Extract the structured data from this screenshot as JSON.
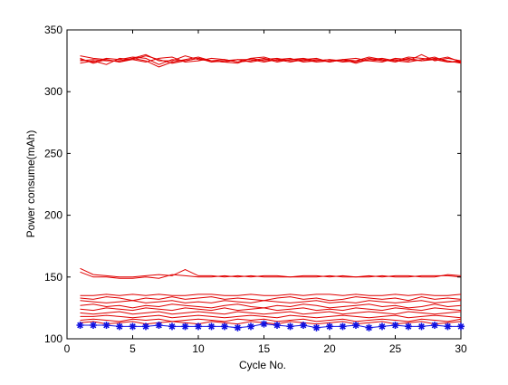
{
  "chart_data": {
    "type": "line",
    "title": "",
    "xlabel": "Cycle No.",
    "ylabel": "Power consume(mAh)",
    "xlim": [
      0,
      30
    ],
    "ylim": [
      100,
      350
    ],
    "xticks": [
      0,
      5,
      10,
      15,
      20,
      25,
      30
    ],
    "yticks": [
      100,
      150,
      200,
      250,
      300,
      350
    ],
    "grid": false,
    "x": [
      1,
      2,
      3,
      4,
      5,
      6,
      7,
      8,
      9,
      10,
      11,
      12,
      13,
      14,
      15,
      16,
      17,
      18,
      19,
      20,
      21,
      22,
      23,
      24,
      25,
      26,
      27,
      28,
      29,
      30
    ],
    "series": [
      {
        "color": "#e00000",
        "values": [
          329,
          327,
          326,
          324,
          327,
          330,
          325,
          325,
          329,
          326,
          325,
          324,
          323,
          327,
          328,
          325,
          326,
          327,
          325,
          326,
          324,
          325,
          328,
          326,
          325,
          328,
          327,
          326,
          328,
          324
        ]
      },
      {
        "color": "#e00000",
        "values": [
          326,
          324,
          327,
          326,
          328,
          327,
          322,
          326,
          325,
          327,
          324,
          325,
          326,
          324,
          326,
          327,
          325,
          325,
          326,
          324,
          326,
          327,
          325,
          324,
          327,
          326,
          325,
          327,
          325,
          323
        ]
      },
      {
        "color": "#e00000",
        "values": [
          323,
          325,
          322,
          327,
          326,
          324,
          327,
          328,
          324,
          325,
          327,
          326,
          324,
          325,
          327,
          324,
          326,
          326,
          324,
          325,
          326,
          323,
          326,
          327,
          325,
          324,
          326,
          328,
          324,
          325
        ]
      },
      {
        "color": "#e00000",
        "values": [
          325,
          326,
          325,
          325,
          327,
          325,
          320,
          324,
          326,
          328,
          325,
          324,
          326,
          326,
          324,
          326,
          327,
          324,
          325,
          326,
          325,
          324,
          327,
          325,
          326,
          325,
          330,
          325,
          327,
          325
        ]
      },
      {
        "color": "#e00000",
        "values": [
          327,
          323,
          326,
          324,
          326,
          329,
          326,
          323,
          325,
          327,
          325,
          326,
          324,
          327,
          325,
          326,
          324,
          326,
          327,
          324,
          326,
          325,
          325,
          326,
          324,
          327,
          325,
          326,
          324,
          324
        ]
      },
      {
        "color": "#e00000",
        "values": [
          157,
          152,
          151,
          150,
          150,
          151,
          152,
          151,
          156,
          151,
          151,
          150,
          151,
          150,
          151,
          151,
          150,
          151,
          151,
          150,
          151,
          150,
          151,
          150,
          151,
          151,
          150,
          150,
          152,
          151
        ]
      },
      {
        "color": "#e00000",
        "values": [
          154,
          150,
          150,
          149,
          149,
          150,
          149,
          152,
          151,
          150,
          150,
          151,
          150,
          151,
          150,
          150,
          150,
          150,
          150,
          151,
          150,
          150,
          150,
          151,
          150,
          150,
          151,
          151,
          151,
          150
        ]
      },
      {
        "color": "#e00000",
        "values": [
          135,
          135,
          136,
          135,
          136,
          135,
          136,
          135,
          135,
          136,
          136,
          135,
          135,
          136,
          135,
          135,
          136,
          135,
          136,
          136,
          135,
          136,
          135,
          135,
          136,
          135,
          136,
          135,
          135,
          136
        ]
      },
      {
        "color": "#e00000",
        "values": [
          133,
          132,
          134,
          133,
          131,
          133,
          132,
          134,
          132,
          133,
          134,
          132,
          133,
          132,
          131,
          133,
          134,
          132,
          133,
          131,
          132,
          134,
          133,
          132,
          133,
          131,
          134,
          132,
          133,
          132
        ]
      },
      {
        "color": "#e00000",
        "values": [
          131,
          130,
          129,
          130,
          131,
          129,
          130,
          131,
          129,
          130,
          129,
          131,
          130,
          129,
          131,
          130,
          129,
          130,
          131,
          129,
          130,
          129,
          131,
          130,
          129,
          130,
          131,
          129,
          130,
          131
        ]
      },
      {
        "color": "#e00000",
        "values": [
          127,
          128,
          126,
          127,
          125,
          127,
          126,
          128,
          127,
          126,
          125,
          127,
          128,
          126,
          125,
          127,
          126,
          128,
          127,
          125,
          126,
          127,
          128,
          126,
          127,
          125,
          126,
          128,
          126,
          127
        ]
      },
      {
        "color": "#e00000",
        "values": [
          124,
          123,
          125,
          124,
          123,
          125,
          124,
          123,
          125,
          124,
          123,
          125,
          123,
          124,
          125,
          123,
          124,
          125,
          123,
          124,
          123,
          125,
          124,
          123,
          125,
          124,
          123,
          125,
          124,
          123
        ]
      },
      {
        "color": "#e00000",
        "values": [
          121,
          120,
          121,
          122,
          120,
          121,
          122,
          120,
          121,
          122,
          121,
          120,
          122,
          121,
          120,
          121,
          122,
          120,
          121,
          122,
          120,
          121,
          122,
          121,
          120,
          122,
          121,
          120,
          121,
          122
        ]
      },
      {
        "color": "#e00000",
        "values": [
          118,
          118,
          119,
          118,
          117,
          118,
          119,
          117,
          118,
          119,
          118,
          117,
          118,
          119,
          118,
          117,
          119,
          118,
          117,
          118,
          119,
          118,
          117,
          118,
          119,
          117,
          118,
          119,
          118,
          117
        ]
      },
      {
        "color": "#e00000",
        "values": [
          115,
          116,
          115,
          114,
          116,
          115,
          116,
          114,
          115,
          116,
          115,
          114,
          116,
          115,
          116,
          114,
          115,
          116,
          114,
          115,
          116,
          114,
          115,
          116,
          115,
          114,
          116,
          115,
          114,
          116
        ]
      },
      {
        "color": "#e00000",
        "values": [
          113,
          114,
          112,
          113,
          114,
          112,
          113,
          114,
          113,
          112,
          114,
          113,
          112,
          114,
          113,
          112,
          114,
          113,
          112,
          113,
          114,
          112,
          113,
          114,
          112,
          113,
          114,
          112,
          113,
          114
        ]
      },
      {
        "color": "#1010e0",
        "marker": "*",
        "values": [
          111,
          111,
          111,
          110,
          110,
          110,
          111,
          110,
          110,
          110,
          110,
          110,
          109,
          110,
          112,
          111,
          110,
          111,
          109,
          110,
          110,
          111,
          109,
          110,
          111,
          110,
          110,
          111,
          110,
          110
        ]
      }
    ]
  }
}
